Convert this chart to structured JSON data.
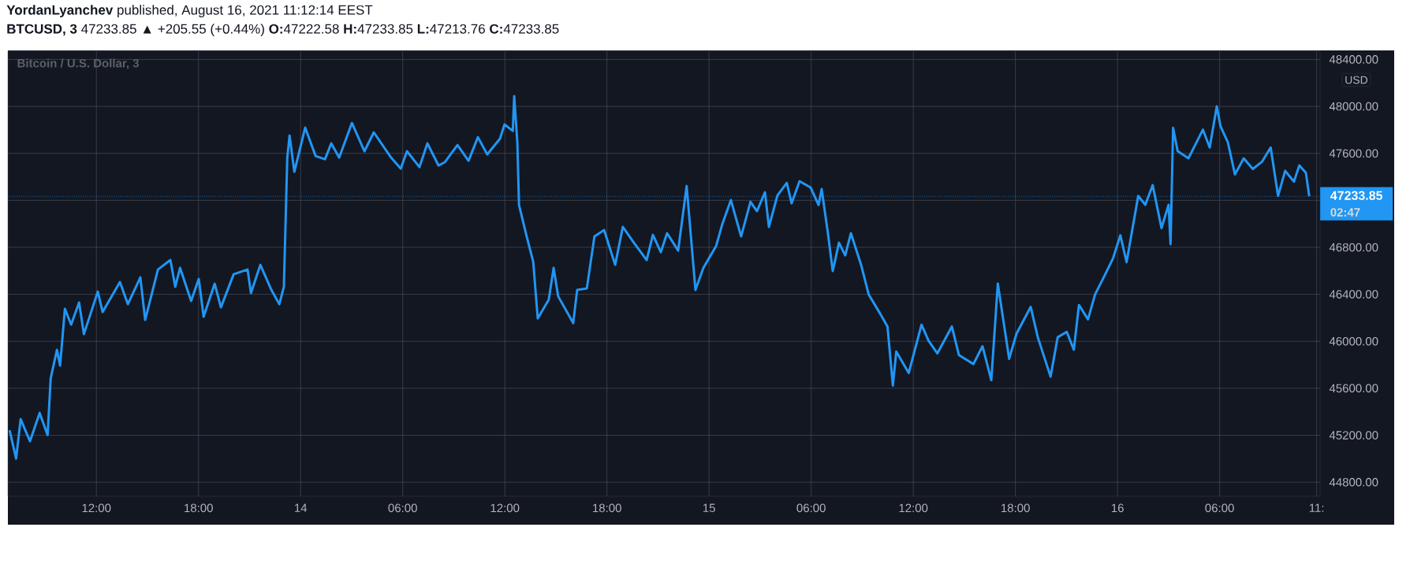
{
  "chart_data": {
    "type": "line",
    "title": "**YordanLyanchev** published, August 16, 2021 11:12:14 EEST",
    "subtitle": "**BTCUSD, 3**  47233.85 ▲ +205.55 (+0.44%) **O:**47222.58 **H:**47233.85 **L:**47213.76 **C:**47233.85",
    "annotations": [
      "Bitcoin / U.S. Dollar, 3",
      "USD",
      "02:47"
    ],
    "x": [
      "2021-08-13T06:54",
      "2021-08-13T07:17",
      "2021-08-13T07:33",
      "2021-08-13T08:06",
      "2021-08-13T08:40",
      "2021-08-13T09:08",
      "2021-08-13T09:19",
      "2021-08-13T09:41",
      "2021-08-13T09:52",
      "2021-08-13T10:09",
      "2021-08-13T10:31",
      "2021-08-13T10:59",
      "2021-08-13T11:16",
      "2021-08-13T12:05",
      "2021-08-13T12:22",
      "2021-08-13T13:23",
      "2021-08-13T13:51",
      "2021-08-13T14:35",
      "2021-08-13T14:52",
      "2021-08-13T15:37",
      "2021-08-13T16:21",
      "2021-08-13T16:38",
      "2021-08-13T16:55",
      "2021-08-13T17:34",
      "2021-08-13T18:01",
      "2021-08-13T18:18",
      "2021-08-13T18:57",
      "2021-08-13T19:19",
      "2021-08-13T20:04",
      "2021-08-13T20:53",
      "2021-08-13T21:05",
      "2021-08-13T21:38",
      "2021-08-13T22:17",
      "2021-08-13T22:45",
      "2021-08-13T23:01",
      "2021-08-13T23:13",
      "2021-08-13T23:21",
      "2021-08-13T23:38",
      "2021-08-14T00:16",
      "2021-08-14T00:53",
      "2021-08-14T01:26",
      "2021-08-14T01:48",
      "2021-08-14T02:16",
      "2021-08-14T03:01",
      "2021-08-14T03:45",
      "2021-08-14T04:18",
      "2021-08-14T05:19",
      "2021-08-14T05:53",
      "2021-08-14T06:15",
      "2021-08-14T06:59",
      "2021-08-14T07:27",
      "2021-08-14T08:06",
      "2021-08-14T08:28",
      "2021-08-14T09:13",
      "2021-08-14T09:52",
      "2021-08-14T10:25",
      "2021-08-14T10:58",
      "2021-08-14T11:43",
      "2021-08-14T11:59",
      "2021-08-14T12:28",
      "2021-08-14T12:33",
      "2021-08-14T12:44",
      "2021-08-14T12:50",
      "2021-08-14T13:17",
      "2021-08-14T13:40",
      "2021-08-14T13:56",
      "2021-08-14T14:35",
      "2021-08-14T14:52",
      "2021-08-14T15:08",
      "2021-08-14T16:01",
      "2021-08-14T16:15",
      "2021-08-14T16:49",
      "2021-08-14T17:16",
      "2021-08-14T17:50",
      "2021-08-14T18:29",
      "2021-08-14T18:56",
      "2021-08-14T19:35",
      "2021-08-14T20:20",
      "2021-08-14T20:42",
      "2021-08-14T21:10",
      "2021-08-14T21:32",
      "2021-08-14T22:11",
      "2021-08-14T22:41",
      "2021-08-14T23:12",
      "2021-08-14T23:40",
      "2021-08-15T00:25",
      "2021-08-15T00:47",
      "2021-08-15T01:17",
      "2021-08-15T01:53",
      "2021-08-15T02:26",
      "2021-08-15T02:49",
      "2021-08-15T03:17",
      "2021-08-15T03:31",
      "2021-08-15T04:01",
      "2021-08-15T04:34",
      "2021-08-15T04:51",
      "2021-08-15T05:19",
      "2021-08-15T05:58",
      "2021-08-15T06:26",
      "2021-08-15T06:37",
      "2021-08-15T06:59",
      "2021-08-15T07:16",
      "2021-08-15T07:38",
      "2021-08-15T08:00",
      "2021-08-15T08:20",
      "2021-08-15T08:56",
      "2021-08-15T09:23",
      "2021-08-15T10:04",
      "2021-08-15T10:29",
      "2021-08-15T10:48",
      "2021-08-15T11:00",
      "2021-08-15T11:44",
      "2021-08-15T12:29",
      "2021-08-15T12:54",
      "2021-08-15T13:25",
      "2021-08-15T14:16",
      "2021-08-15T14:41",
      "2021-08-15T15:32",
      "2021-08-15T16:04",
      "2021-08-15T16:35",
      "2021-08-15T16:58",
      "2021-08-15T17:38",
      "2021-08-15T18:04",
      "2021-08-15T18:54",
      "2021-08-15T19:19",
      "2021-08-15T20:04",
      "2021-08-15T20:29",
      "2021-08-15T21:01",
      "2021-08-15T21:26",
      "2021-08-15T21:44",
      "2021-08-15T22:16",
      "2021-08-15T22:41",
      "2021-08-15T23:13",
      "2021-08-15T23:44",
      "2021-08-16T00:10",
      "2021-08-16T00:32",
      "2021-08-16T01:13",
      "2021-08-16T01:38",
      "2021-08-16T02:04",
      "2021-08-16T02:35",
      "2021-08-16T03:00",
      "2021-08-16T03:07",
      "2021-08-16T03:16",
      "2021-08-16T03:32",
      "2021-08-16T04:10",
      "2021-08-16T05:01",
      "2021-08-16T05:25",
      "2021-08-16T05:50",
      "2021-08-16T06:03",
      "2021-08-16T06:29",
      "2021-08-16T06:54",
      "2021-08-16T07:25",
      "2021-08-16T07:57",
      "2021-08-16T08:29",
      "2021-08-16T09:00",
      "2021-08-16T09:26",
      "2021-08-16T09:51",
      "2021-08-16T10:22",
      "2021-08-16T10:41",
      "2021-08-16T11:04",
      "2021-08-16T11:16"
    ],
    "series": [
      {
        "color": "#2196f3",
        "values": [
          45243,
          45001,
          45337,
          45149,
          45390,
          45202,
          45685,
          45927,
          45793,
          46276,
          46142,
          46330,
          46061,
          46423,
          46249,
          46504,
          46316,
          46544,
          46182,
          46611,
          46692,
          46464,
          46625,
          46343,
          46531,
          46209,
          46490,
          46289,
          46571,
          46611,
          46410,
          46651,
          46437,
          46316,
          46464,
          47564,
          47752,
          47443,
          47819,
          47577,
          47550,
          47685,
          47564,
          47859,
          47618,
          47779,
          47564,
          47470,
          47618,
          47483,
          47685,
          47497,
          47524,
          47671,
          47537,
          47738,
          47591,
          47725,
          47846,
          47792,
          48087,
          47698,
          47161,
          46893,
          46678,
          46195,
          46356,
          46625,
          46383,
          46155,
          46437,
          46450,
          46893,
          46947,
          46651,
          46974,
          46839,
          46692,
          46906,
          46759,
          46920,
          46772,
          47322,
          46437,
          46625,
          46812,
          47000,
          47202,
          46893,
          47188,
          47108,
          47269,
          46974,
          47242,
          47349,
          47175,
          47363,
          47309,
          47161,
          47296,
          46920,
          46598,
          46839,
          46732,
          46920,
          46651,
          46397,
          46232,
          46126,
          45623,
          45912,
          45730,
          46141,
          46004,
          45897,
          46126,
          45882,
          45806,
          45958,
          45669,
          46491,
          45851,
          46065,
          46293,
          46034,
          45699,
          46034,
          46080,
          45928,
          46309,
          46187,
          46400,
          46552,
          46705,
          46903,
          46674,
          47238,
          47162,
          47330,
          46964,
          47162,
          46827,
          47817,
          47619,
          47558,
          47802,
          47650,
          48000,
          47832,
          47695,
          47421,
          47558,
          47467,
          47528,
          47650,
          47238,
          47451,
          47360,
          47497,
          47436,
          47234
        ]
      }
    ],
    "xlim": [
      "2021-08-13T06:48",
      "2021-08-16T11:54"
    ],
    "xticks": [
      {
        "value": "2021-08-13T12:00",
        "label": "12:00"
      },
      {
        "value": "2021-08-13T18:00",
        "label": "18:00"
      },
      {
        "value": "2021-08-14T00:00",
        "label": "14"
      },
      {
        "value": "2021-08-14T06:00",
        "label": "06:00"
      },
      {
        "value": "2021-08-14T12:00",
        "label": "12:00"
      },
      {
        "value": "2021-08-14T18:00",
        "label": "18:00"
      },
      {
        "value": "2021-08-15T00:00",
        "label": "15"
      },
      {
        "value": "2021-08-15T06:00",
        "label": "06:00"
      },
      {
        "value": "2021-08-15T12:00",
        "label": "12:00"
      },
      {
        "value": "2021-08-15T18:00",
        "label": "18:00"
      },
      {
        "value": "2021-08-16T00:00",
        "label": "16"
      },
      {
        "value": "2021-08-16T06:00",
        "label": "06:00"
      },
      {
        "value": "2021-08-16T11:42",
        "label": "11:"
      }
    ],
    "ylim": [
      44680,
      48470
    ],
    "yticks": [
      {
        "value": 44800,
        "label": "44800.00"
      },
      {
        "value": 45200,
        "label": "45200.00"
      },
      {
        "value": 45600,
        "label": "45600.00"
      },
      {
        "value": 46000,
        "label": "46000.00"
      },
      {
        "value": 46400,
        "label": "46400.00"
      },
      {
        "value": 46800,
        "label": "46800.00"
      },
      {
        "value": 47200,
        "label": null
      },
      {
        "value": 47600,
        "label": "47600.00"
      },
      {
        "value": 48000,
        "label": "48000.00"
      },
      {
        "value": 48400,
        "label": "48400.00"
      }
    ],
    "grid": true,
    "ref_lines": [
      {
        "axis": "y",
        "value": 47233.85,
        "label": "47233.85",
        "color": "#2196f3",
        "line_style": "dotted"
      }
    ]
  }
}
